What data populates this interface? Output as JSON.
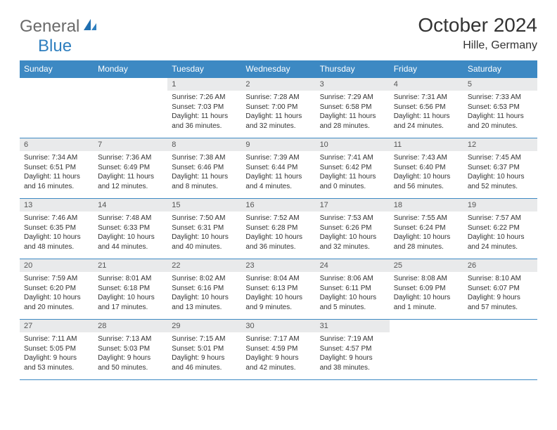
{
  "branding": {
    "general": "General",
    "blue": "Blue",
    "accent_color": "#2f7fbf"
  },
  "header": {
    "month_title": "October 2024",
    "location": "Hille, Germany"
  },
  "calendar": {
    "header_bg": "#3d89c3",
    "header_fg": "#ffffff",
    "daynum_bg": "#e9eaeb",
    "border_color": "#3d89c3",
    "days_of_week": [
      "Sunday",
      "Monday",
      "Tuesday",
      "Wednesday",
      "Thursday",
      "Friday",
      "Saturday"
    ],
    "weeks": [
      [
        null,
        null,
        {
          "n": "1",
          "sunrise": "Sunrise: 7:26 AM",
          "sunset": "Sunset: 7:03 PM",
          "daylight": "Daylight: 11 hours and 36 minutes."
        },
        {
          "n": "2",
          "sunrise": "Sunrise: 7:28 AM",
          "sunset": "Sunset: 7:00 PM",
          "daylight": "Daylight: 11 hours and 32 minutes."
        },
        {
          "n": "3",
          "sunrise": "Sunrise: 7:29 AM",
          "sunset": "Sunset: 6:58 PM",
          "daylight": "Daylight: 11 hours and 28 minutes."
        },
        {
          "n": "4",
          "sunrise": "Sunrise: 7:31 AM",
          "sunset": "Sunset: 6:56 PM",
          "daylight": "Daylight: 11 hours and 24 minutes."
        },
        {
          "n": "5",
          "sunrise": "Sunrise: 7:33 AM",
          "sunset": "Sunset: 6:53 PM",
          "daylight": "Daylight: 11 hours and 20 minutes."
        }
      ],
      [
        {
          "n": "6",
          "sunrise": "Sunrise: 7:34 AM",
          "sunset": "Sunset: 6:51 PM",
          "daylight": "Daylight: 11 hours and 16 minutes."
        },
        {
          "n": "7",
          "sunrise": "Sunrise: 7:36 AM",
          "sunset": "Sunset: 6:49 PM",
          "daylight": "Daylight: 11 hours and 12 minutes."
        },
        {
          "n": "8",
          "sunrise": "Sunrise: 7:38 AM",
          "sunset": "Sunset: 6:46 PM",
          "daylight": "Daylight: 11 hours and 8 minutes."
        },
        {
          "n": "9",
          "sunrise": "Sunrise: 7:39 AM",
          "sunset": "Sunset: 6:44 PM",
          "daylight": "Daylight: 11 hours and 4 minutes."
        },
        {
          "n": "10",
          "sunrise": "Sunrise: 7:41 AM",
          "sunset": "Sunset: 6:42 PM",
          "daylight": "Daylight: 11 hours and 0 minutes."
        },
        {
          "n": "11",
          "sunrise": "Sunrise: 7:43 AM",
          "sunset": "Sunset: 6:40 PM",
          "daylight": "Daylight: 10 hours and 56 minutes."
        },
        {
          "n": "12",
          "sunrise": "Sunrise: 7:45 AM",
          "sunset": "Sunset: 6:37 PM",
          "daylight": "Daylight: 10 hours and 52 minutes."
        }
      ],
      [
        {
          "n": "13",
          "sunrise": "Sunrise: 7:46 AM",
          "sunset": "Sunset: 6:35 PM",
          "daylight": "Daylight: 10 hours and 48 minutes."
        },
        {
          "n": "14",
          "sunrise": "Sunrise: 7:48 AM",
          "sunset": "Sunset: 6:33 PM",
          "daylight": "Daylight: 10 hours and 44 minutes."
        },
        {
          "n": "15",
          "sunrise": "Sunrise: 7:50 AM",
          "sunset": "Sunset: 6:31 PM",
          "daylight": "Daylight: 10 hours and 40 minutes."
        },
        {
          "n": "16",
          "sunrise": "Sunrise: 7:52 AM",
          "sunset": "Sunset: 6:28 PM",
          "daylight": "Daylight: 10 hours and 36 minutes."
        },
        {
          "n": "17",
          "sunrise": "Sunrise: 7:53 AM",
          "sunset": "Sunset: 6:26 PM",
          "daylight": "Daylight: 10 hours and 32 minutes."
        },
        {
          "n": "18",
          "sunrise": "Sunrise: 7:55 AM",
          "sunset": "Sunset: 6:24 PM",
          "daylight": "Daylight: 10 hours and 28 minutes."
        },
        {
          "n": "19",
          "sunrise": "Sunrise: 7:57 AM",
          "sunset": "Sunset: 6:22 PM",
          "daylight": "Daylight: 10 hours and 24 minutes."
        }
      ],
      [
        {
          "n": "20",
          "sunrise": "Sunrise: 7:59 AM",
          "sunset": "Sunset: 6:20 PM",
          "daylight": "Daylight: 10 hours and 20 minutes."
        },
        {
          "n": "21",
          "sunrise": "Sunrise: 8:01 AM",
          "sunset": "Sunset: 6:18 PM",
          "daylight": "Daylight: 10 hours and 17 minutes."
        },
        {
          "n": "22",
          "sunrise": "Sunrise: 8:02 AM",
          "sunset": "Sunset: 6:16 PM",
          "daylight": "Daylight: 10 hours and 13 minutes."
        },
        {
          "n": "23",
          "sunrise": "Sunrise: 8:04 AM",
          "sunset": "Sunset: 6:13 PM",
          "daylight": "Daylight: 10 hours and 9 minutes."
        },
        {
          "n": "24",
          "sunrise": "Sunrise: 8:06 AM",
          "sunset": "Sunset: 6:11 PM",
          "daylight": "Daylight: 10 hours and 5 minutes."
        },
        {
          "n": "25",
          "sunrise": "Sunrise: 8:08 AM",
          "sunset": "Sunset: 6:09 PM",
          "daylight": "Daylight: 10 hours and 1 minute."
        },
        {
          "n": "26",
          "sunrise": "Sunrise: 8:10 AM",
          "sunset": "Sunset: 6:07 PM",
          "daylight": "Daylight: 9 hours and 57 minutes."
        }
      ],
      [
        {
          "n": "27",
          "sunrise": "Sunrise: 7:11 AM",
          "sunset": "Sunset: 5:05 PM",
          "daylight": "Daylight: 9 hours and 53 minutes."
        },
        {
          "n": "28",
          "sunrise": "Sunrise: 7:13 AM",
          "sunset": "Sunset: 5:03 PM",
          "daylight": "Daylight: 9 hours and 50 minutes."
        },
        {
          "n": "29",
          "sunrise": "Sunrise: 7:15 AM",
          "sunset": "Sunset: 5:01 PM",
          "daylight": "Daylight: 9 hours and 46 minutes."
        },
        {
          "n": "30",
          "sunrise": "Sunrise: 7:17 AM",
          "sunset": "Sunset: 4:59 PM",
          "daylight": "Daylight: 9 hours and 42 minutes."
        },
        {
          "n": "31",
          "sunrise": "Sunrise: 7:19 AM",
          "sunset": "Sunset: 4:57 PM",
          "daylight": "Daylight: 9 hours and 38 minutes."
        },
        null,
        null
      ]
    ]
  }
}
